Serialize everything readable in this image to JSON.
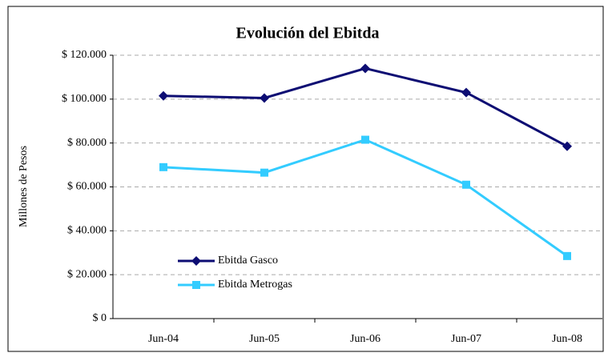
{
  "chart_data": {
    "type": "line",
    "title": "Evolución del Ebitda",
    "y_label": "Millones de Pesos",
    "categories": [
      "Jun-04",
      "Jun-05",
      "Jun-06",
      "Jun-07",
      "Jun-08"
    ],
    "series": [
      {
        "name": "Ebitda Gasco",
        "color": "#0d0d73",
        "marker": "diamond",
        "values": [
          101500,
          100500,
          114000,
          103000,
          78500
        ]
      },
      {
        "name": "Ebitda Metrogas",
        "color": "#33ccff",
        "marker": "square",
        "values": [
          69000,
          66500,
          81500,
          61000,
          28500
        ]
      }
    ],
    "ylim": [
      0,
      120000
    ],
    "yticks": [
      {
        "value": 0,
        "label": "$ 0"
      },
      {
        "value": 20000,
        "label": "$ 20.000"
      },
      {
        "value": 40000,
        "label": "$ 40.000"
      },
      {
        "value": 60000,
        "label": "$ 60.000"
      },
      {
        "value": 80000,
        "label": "$ 80.000"
      },
      {
        "value": 100000,
        "label": "$ 100.000"
      },
      {
        "value": 120000,
        "label": "$ 120.000"
      }
    ],
    "grid": true
  }
}
